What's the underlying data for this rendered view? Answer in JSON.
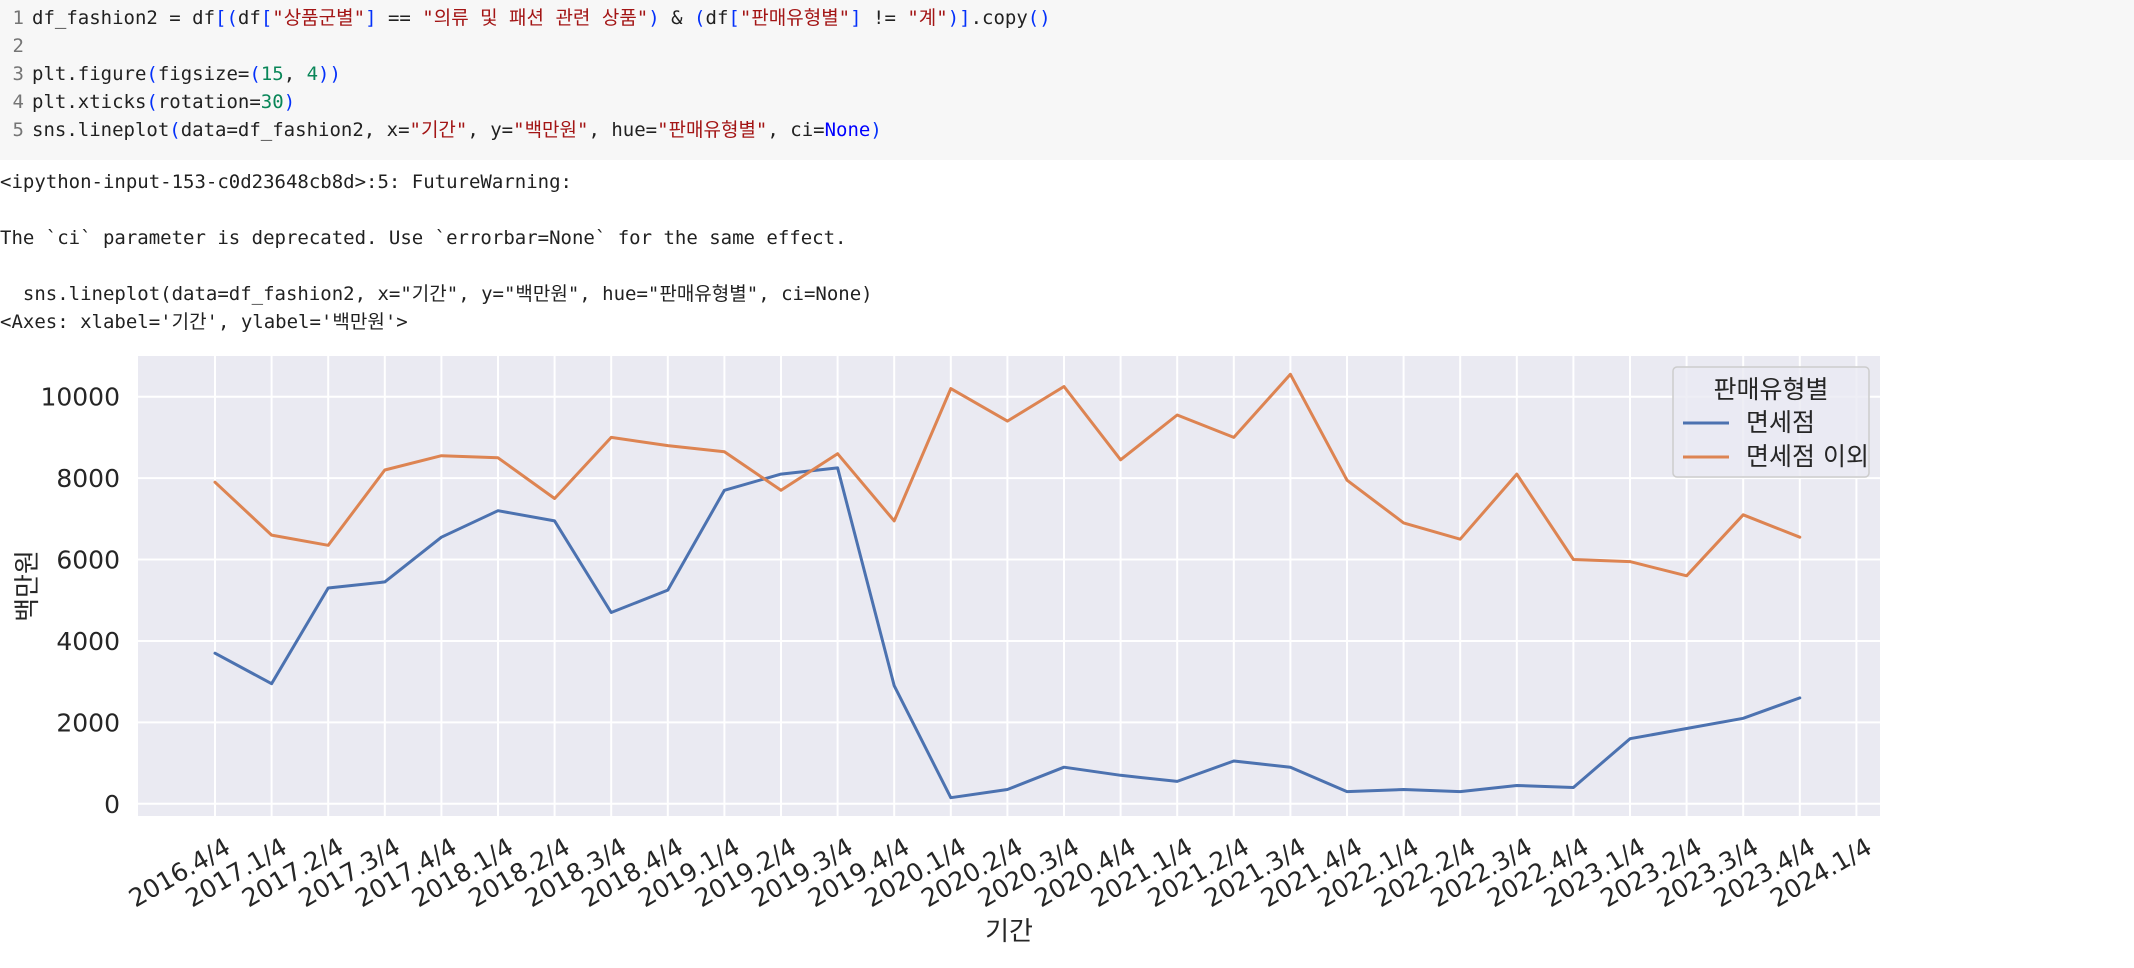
{
  "code_cell": {
    "lines": [
      {
        "no": "1",
        "parts": [
          {
            "t": "df_fashion2 = df",
            "c": ""
          },
          {
            "t": "[(",
            "c": "tok-paren"
          },
          {
            "t": "df",
            "c": ""
          },
          {
            "t": "[",
            "c": "tok-paren"
          },
          {
            "t": "\"상품군별\"",
            "c": "tok-str"
          },
          {
            "t": "]",
            "c": "tok-paren"
          },
          {
            "t": " == ",
            "c": ""
          },
          {
            "t": "\"의류 및 패션 관련 상품\"",
            "c": "tok-str"
          },
          {
            "t": ")",
            "c": "tok-paren"
          },
          {
            "t": " & ",
            "c": ""
          },
          {
            "t": "(",
            "c": "tok-paren"
          },
          {
            "t": "df",
            "c": ""
          },
          {
            "t": "[",
            "c": "tok-paren"
          },
          {
            "t": "\"판매유형별\"",
            "c": "tok-str"
          },
          {
            "t": "]",
            "c": "tok-paren"
          },
          {
            "t": " != ",
            "c": ""
          },
          {
            "t": "\"계\"",
            "c": "tok-str"
          },
          {
            "t": ")]",
            "c": "tok-paren"
          },
          {
            "t": ".copy",
            "c": ""
          },
          {
            "t": "()",
            "c": "tok-paren"
          }
        ]
      },
      {
        "no": "2",
        "parts": []
      },
      {
        "no": "3",
        "parts": [
          {
            "t": "plt.figure",
            "c": ""
          },
          {
            "t": "(",
            "c": "tok-paren"
          },
          {
            "t": "figsize=",
            "c": ""
          },
          {
            "t": "(",
            "c": "tok-paren"
          },
          {
            "t": "15",
            "c": "tok-num"
          },
          {
            "t": ", ",
            "c": ""
          },
          {
            "t": "4",
            "c": "tok-num"
          },
          {
            "t": "))",
            "c": "tok-paren"
          }
        ]
      },
      {
        "no": "4",
        "parts": [
          {
            "t": "plt.xticks",
            "c": ""
          },
          {
            "t": "(",
            "c": "tok-paren"
          },
          {
            "t": "rotation=",
            "c": ""
          },
          {
            "t": "30",
            "c": "tok-num"
          },
          {
            "t": ")",
            "c": "tok-paren"
          }
        ]
      },
      {
        "no": "5",
        "parts": [
          {
            "t": "sns.lineplot",
            "c": ""
          },
          {
            "t": "(",
            "c": "tok-paren"
          },
          {
            "t": "data=df_fashion2, x=",
            "c": ""
          },
          {
            "t": "\"기간\"",
            "c": "tok-str"
          },
          {
            "t": ", y=",
            "c": ""
          },
          {
            "t": "\"백만원\"",
            "c": "tok-str"
          },
          {
            "t": ", hue=",
            "c": ""
          },
          {
            "t": "\"판매유형별\"",
            "c": "tok-str"
          },
          {
            "t": ", ci=",
            "c": ""
          },
          {
            "t": "None",
            "c": "tok-kw"
          },
          {
            "t": ")",
            "c": "tok-paren"
          }
        ]
      }
    ]
  },
  "output": {
    "lines": [
      "<ipython-input-153-c0d23648cb8d>:5: FutureWarning:",
      "",
      "The `ci` parameter is deprecated. Use `errorbar=None` for the same effect.",
      "",
      "  sns.lineplot(data=df_fashion2, x=\"기간\", y=\"백만원\", hue=\"판매유형별\", ci=None)",
      "<Axes: xlabel='기간', ylabel='백만원'>"
    ]
  },
  "chart_data": {
    "type": "line",
    "title": "",
    "xlabel": "기간",
    "ylabel": "백만원",
    "x": [
      "2016.4/4",
      "2017.1/4",
      "2017.2/4",
      "2017.3/4",
      "2017.4/4",
      "2018.1/4",
      "2018.2/4",
      "2018.3/4",
      "2018.4/4",
      "2019.1/4",
      "2019.2/4",
      "2019.3/4",
      "2019.4/4",
      "2020.1/4",
      "2020.2/4",
      "2020.3/4",
      "2020.4/4",
      "2021.1/4",
      "2021.2/4",
      "2021.3/4",
      "2021.4/4",
      "2022.1/4",
      "2022.2/4",
      "2022.3/4",
      "2022.4/4",
      "2023.1/4",
      "2023.2/4",
      "2023.3/4",
      "2023.4/4",
      "2024.1/4"
    ],
    "ylim": [
      -300,
      11000
    ],
    "yticks": [
      0,
      2000,
      4000,
      6000,
      8000,
      10000
    ],
    "grid": true,
    "background": "#eaeaf2",
    "legend": {
      "title": "판매유형별",
      "placement": "top-right"
    },
    "series": [
      {
        "name": "면세점",
        "color": "#4c72b0",
        "values": [
          3700,
          2950,
          5300,
          5450,
          6550,
          7200,
          6950,
          4700,
          5250,
          7700,
          8100,
          8250,
          2900,
          150,
          350,
          900,
          700,
          550,
          1050,
          900,
          300,
          350,
          300,
          450,
          400,
          1600,
          1850,
          2100,
          2600,
          null
        ]
      },
      {
        "name": "면세점 이외",
        "color": "#dd8452",
        "values": [
          7900,
          6600,
          6350,
          8200,
          8550,
          8500,
          7500,
          9000,
          8800,
          8650,
          7700,
          8600,
          6950,
          10200,
          9400,
          10250,
          8450,
          9550,
          9000,
          10550,
          7950,
          6900,
          6500,
          8100,
          6000,
          5950,
          5600,
          7100,
          6550,
          null
        ]
      }
    ]
  }
}
